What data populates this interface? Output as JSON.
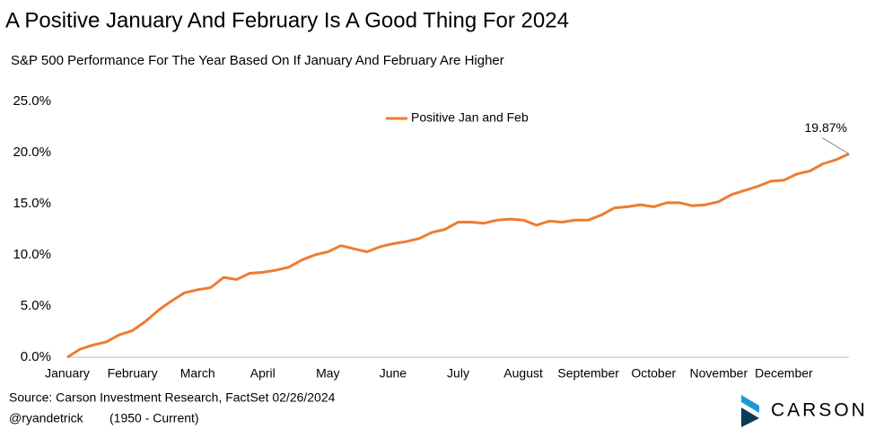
{
  "chart_data": {
    "type": "line",
    "title": "A Positive January And February Is A Good Thing For 2024",
    "subtitle": "S&P 500 Performance For The Year Based On If January And February Are Higher",
    "categories": [
      "January",
      null,
      null,
      null,
      null,
      "February",
      null,
      null,
      null,
      null,
      "March",
      null,
      null,
      null,
      null,
      "April",
      null,
      null,
      null,
      null,
      "May",
      null,
      null,
      null,
      null,
      "June",
      null,
      null,
      null,
      null,
      "July",
      null,
      null,
      null,
      null,
      "August",
      null,
      null,
      null,
      null,
      "September",
      null,
      null,
      null,
      null,
      "October",
      null,
      null,
      null,
      null,
      "November",
      null,
      null,
      null,
      null,
      "December",
      null,
      null,
      null,
      null,
      null
    ],
    "series": [
      {
        "name": "Positive Jan and Feb",
        "color": "#ed7d31",
        "values": [
          0,
          0.8,
          1.2,
          1.5,
          2.2,
          2.6,
          3.5,
          4.6,
          5.5,
          6.3,
          6.6,
          6.8,
          7.8,
          7.6,
          8.2,
          8.3,
          8.5,
          8.8,
          9.5,
          10.0,
          10.3,
          10.9,
          10.6,
          10.3,
          10.8,
          11.1,
          11.3,
          11.6,
          12.2,
          12.5,
          13.2,
          13.2,
          13.1,
          13.4,
          13.5,
          13.4,
          12.9,
          13.3,
          13.2,
          13.4,
          13.4,
          13.9,
          14.6,
          14.7,
          14.9,
          14.7,
          15.1,
          15.1,
          14.8,
          14.9,
          15.2,
          15.9,
          16.3,
          16.7,
          17.2,
          17.3,
          17.9,
          18.2,
          18.9,
          19.3,
          19.87
        ],
        "value_labels": [
          null,
          null,
          null,
          null,
          null,
          null,
          null,
          null,
          null,
          null,
          null,
          null,
          null,
          null,
          null,
          null,
          null,
          null,
          null,
          null,
          null,
          null,
          null,
          null,
          null,
          null,
          null,
          null,
          null,
          null,
          null,
          null,
          null,
          null,
          null,
          null,
          null,
          null,
          null,
          null,
          null,
          null,
          null,
          null,
          null,
          null,
          null,
          null,
          null,
          null,
          null,
          null,
          null,
          null,
          null,
          null,
          null,
          null,
          null,
          null,
          "19.87%"
        ]
      }
    ],
    "ylim": [
      0,
      25
    ],
    "yticks": [
      {
        "value": 0,
        "label": "0.0%"
      },
      {
        "value": 5,
        "label": "5.0%"
      },
      {
        "value": 10,
        "label": "10.0%"
      },
      {
        "value": 15,
        "label": "15.0%"
      },
      {
        "value": 20,
        "label": "20.0%"
      },
      {
        "value": 25,
        "label": "25.0%"
      }
    ],
    "grid": false,
    "legend": "top",
    "source": "Source: Carson Investment Research, FactSet 02/26/2024",
    "handle": "@ryandetrick",
    "period": "(1950 - Current)",
    "logo": "CARSON"
  }
}
